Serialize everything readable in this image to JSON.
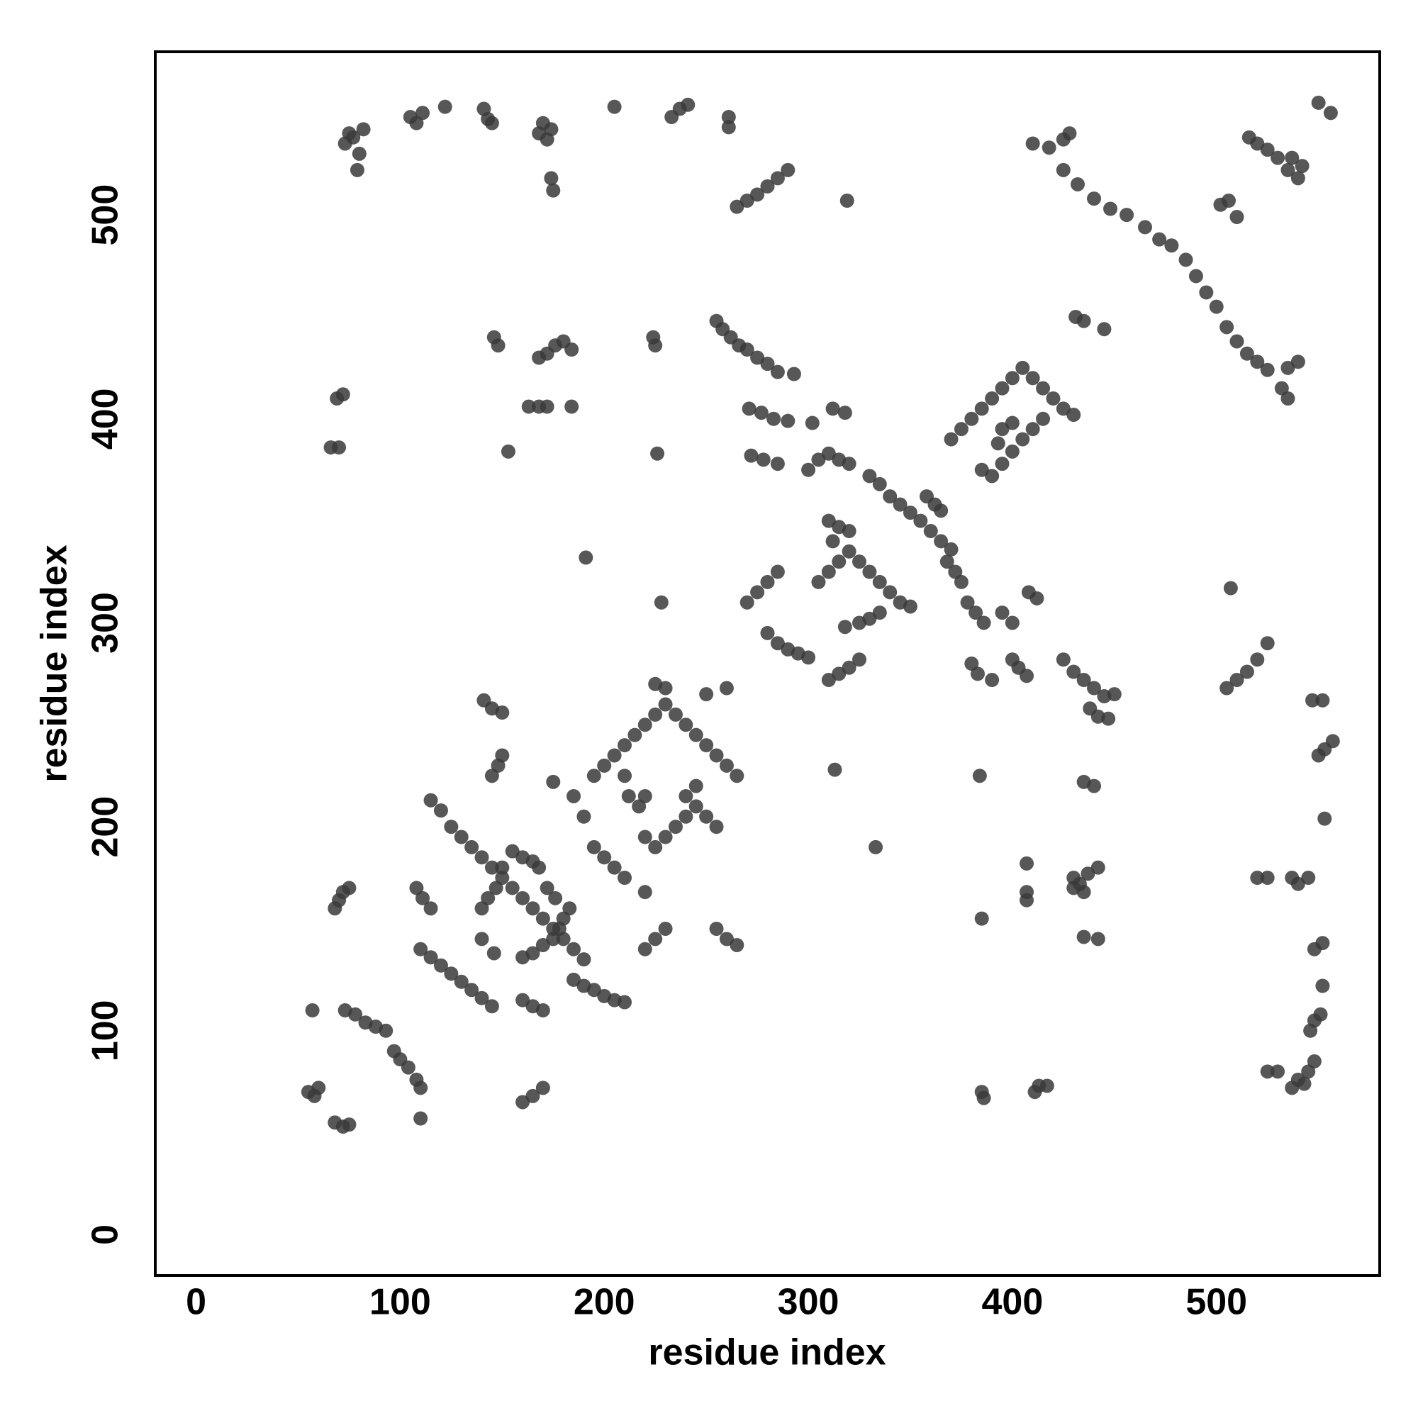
{
  "chart_data": {
    "type": "scatter",
    "xlabel": "residue index",
    "ylabel": "residue index",
    "xlim": [
      -20,
      580
    ],
    "ylim": [
      -20,
      580
    ],
    "xticks": [
      0,
      100,
      200,
      300,
      400,
      500
    ],
    "yticks": [
      0,
      100,
      200,
      300,
      400,
      500
    ],
    "grid": false,
    "color": "#3a3a3a",
    "x": [
      73,
      75,
      77,
      80,
      82,
      79,
      105,
      108,
      111,
      122,
      141,
      143,
      145,
      168,
      170,
      172,
      174,
      174,
      175,
      205,
      233,
      237,
      241,
      261,
      261,
      265,
      270,
      275,
      280,
      285,
      290,
      319,
      410,
      418,
      425,
      428,
      425,
      432,
      440,
      448,
      456,
      465,
      472,
      478,
      485,
      490,
      495,
      500,
      505,
      510,
      515,
      520,
      525,
      502,
      506,
      510,
      516,
      520,
      525,
      530,
      535,
      540,
      537,
      542,
      550,
      556,
      69,
      72,
      66,
      70,
      146,
      148,
      153,
      168,
      172,
      176,
      180,
      184,
      163,
      168,
      172,
      184,
      224,
      225,
      226,
      255,
      258,
      262,
      266,
      270,
      275,
      280,
      285,
      293,
      271,
      277,
      283,
      290,
      272,
      278,
      285,
      302,
      312,
      318,
      431,
      435,
      445,
      540,
      535,
      532,
      535,
      300,
      305,
      310,
      315,
      320,
      330,
      335,
      340,
      345,
      350,
      355,
      360,
      365,
      370,
      305,
      310,
      315,
      320,
      325,
      330,
      335,
      340,
      345,
      350,
      310,
      315,
      320,
      312,
      358,
      362,
      365,
      368,
      372,
      375,
      378,
      382,
      386,
      325,
      330,
      335,
      318,
      310,
      315,
      320,
      325,
      270,
      275,
      280,
      285,
      280,
      285,
      290,
      295,
      300,
      370,
      375,
      380,
      385,
      390,
      395,
      400,
      405,
      410,
      415,
      420,
      425,
      430,
      385,
      390,
      395,
      400,
      405,
      410,
      415,
      395,
      400,
      393,
      380,
      383,
      390,
      400,
      403,
      407,
      425,
      430,
      435,
      440,
      445,
      450,
      438,
      442,
      447,
      395,
      400,
      408,
      412,
      384,
      435,
      440,
      430,
      433,
      437,
      442,
      435,
      430,
      407,
      407,
      407,
      385,
      435,
      442,
      385,
      386,
      411,
      413,
      417,
      540,
      537,
      543,
      545,
      548,
      525,
      530,
      546,
      548,
      551,
      552,
      548,
      552,
      540,
      545,
      537,
      520,
      525,
      553,
      550,
      553,
      557,
      547,
      552,
      505,
      510,
      515,
      520,
      525,
      507,
      333,
      313,
      55,
      58,
      60,
      57,
      68,
      72,
      75,
      68,
      70,
      72,
      75,
      73,
      78,
      83,
      88,
      93,
      97,
      100,
      104,
      108,
      110,
      110,
      108,
      111,
      115,
      110,
      115,
      120,
      125,
      130,
      135,
      140,
      145,
      115,
      120,
      125,
      130,
      135,
      140,
      145,
      150,
      155,
      160,
      165,
      170,
      175,
      180,
      185,
      190,
      140,
      143,
      147,
      150,
      155,
      160,
      148,
      150,
      145,
      141,
      145,
      150,
      140,
      146,
      160,
      165,
      170,
      175,
      178,
      180,
      183,
      176,
      172,
      168,
      165,
      160,
      165,
      170,
      160,
      165,
      170,
      175,
      185,
      190,
      185,
      190,
      195,
      200,
      205,
      210,
      195,
      200,
      205,
      210,
      215,
      220,
      225,
      230,
      235,
      240,
      245,
      250,
      255,
      260,
      265,
      195,
      200,
      205,
      210,
      212,
      217,
      220,
      220,
      225,
      230,
      235,
      240,
      245,
      250,
      255,
      225,
      230,
      250,
      260,
      220,
      225,
      230,
      255,
      260,
      265,
      220,
      191,
      228,
      210,
      240,
      245
    ],
    "y": [
      535,
      540,
      538,
      530,
      542,
      522,
      548,
      545,
      550,
      553,
      552,
      547,
      545,
      540,
      545,
      537,
      542,
      518,
      512,
      553,
      548,
      552,
      554,
      548,
      543,
      504,
      507,
      510,
      514,
      518,
      522,
      507,
      535,
      533,
      537,
      540,
      522,
      515,
      508,
      503,
      500,
      494,
      488,
      485,
      478,
      470,
      462,
      455,
      445,
      438,
      432,
      428,
      424,
      505,
      507,
      499,
      538,
      535,
      532,
      528,
      522,
      518,
      528,
      524,
      555,
      550,
      410,
      412,
      386,
      386,
      440,
      436,
      384,
      430,
      432,
      436,
      438,
      434,
      406,
      406,
      406,
      406,
      440,
      436,
      383,
      448,
      444,
      440,
      436,
      434,
      430,
      427,
      423,
      422,
      405,
      403,
      400,
      399,
      382,
      380,
      378,
      398,
      405,
      403,
      450,
      448,
      444,
      428,
      425,
      415,
      410,
      375,
      380,
      383,
      380,
      378,
      372,
      368,
      362,
      358,
      354,
      350,
      345,
      340,
      336,
      320,
      325,
      330,
      335,
      330,
      325,
      320,
      315,
      310,
      308,
      350,
      347,
      345,
      340,
      362,
      358,
      355,
      330,
      325,
      320,
      310,
      305,
      300,
      300,
      302,
      305,
      298,
      272,
      275,
      278,
      282,
      310,
      315,
      320,
      325,
      295,
      290,
      287,
      285,
      283,
      390,
      395,
      400,
      405,
      410,
      415,
      420,
      425,
      420,
      415,
      410,
      405,
      402,
      375,
      372,
      378,
      384,
      390,
      395,
      400,
      395,
      398,
      388,
      280,
      275,
      272,
      282,
      278,
      274,
      282,
      276,
      272,
      268,
      264,
      265,
      258,
      254,
      253,
      305,
      300,
      315,
      312,
      225,
      222,
      220,
      175,
      172,
      177,
      180,
      168,
      170,
      182,
      168,
      164,
      155,
      146,
      145,
      70,
      67,
      70,
      73,
      73,
      76,
      72,
      74,
      80,
      85,
      80,
      80,
      100,
      105,
      108,
      122,
      140,
      143,
      172,
      175,
      175,
      175,
      175,
      204,
      235,
      238,
      242,
      262,
      262,
      268,
      272,
      276,
      282,
      290,
      317,
      190,
      228,
      70,
      68,
      72,
      110,
      55,
      53,
      54,
      160,
      164,
      168,
      170,
      110,
      108,
      104,
      102,
      100,
      90,
      86,
      82,
      76,
      72,
      57,
      170,
      165,
      160,
      140,
      136,
      132,
      128,
      124,
      120,
      116,
      112,
      213,
      208,
      200,
      195,
      190,
      185,
      180,
      175,
      170,
      165,
      160,
      155,
      150,
      145,
      140,
      135,
      160,
      165,
      170,
      180,
      188,
      185,
      230,
      235,
      225,
      262,
      258,
      256,
      145,
      138,
      136,
      138,
      142,
      145,
      150,
      155,
      160,
      165,
      170,
      180,
      183,
      115,
      112,
      110,
      65,
      68,
      72,
      222,
      215,
      205,
      125,
      122,
      120,
      117,
      115,
      114,
      225,
      230,
      235,
      240,
      245,
      250,
      255,
      260,
      255,
      250,
      245,
      240,
      235,
      230,
      225,
      190,
      185,
      180,
      175,
      215,
      210,
      215,
      195,
      190,
      195,
      200,
      205,
      210,
      205,
      200,
      270,
      268,
      265,
      268,
      140,
      145,
      150,
      150,
      145,
      142,
      168,
      332,
      310,
      225,
      215,
      220
    ]
  }
}
